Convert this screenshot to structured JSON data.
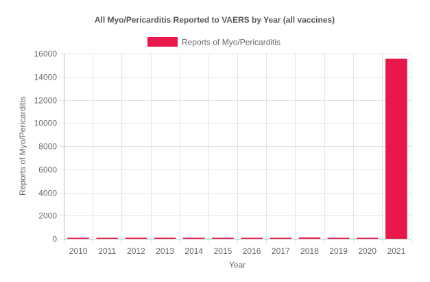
{
  "chart_data": {
    "type": "bar",
    "title": "All Myo/Pericarditis Reported to VAERS by Year (all vaccines)",
    "xlabel": "Year",
    "ylabel": "Reports of Myo/Pericarditis",
    "categories": [
      "2010",
      "2011",
      "2012",
      "2013",
      "2014",
      "2015",
      "2016",
      "2017",
      "2018",
      "2019",
      "2020",
      "2021"
    ],
    "series": [
      {
        "name": "Reports of Myo/Pericarditis",
        "color": "#e8184a",
        "values": [
          55,
          60,
          95,
          95,
          65,
          45,
          40,
          55,
          110,
          60,
          55,
          15550
        ]
      }
    ],
    "ylim": [
      0,
      16000
    ],
    "yticks": [
      "0",
      "2000",
      "4000",
      "6000",
      "8000",
      "10000",
      "12000",
      "14000",
      "16000"
    ],
    "grid": true,
    "legend_position": "top-center"
  }
}
